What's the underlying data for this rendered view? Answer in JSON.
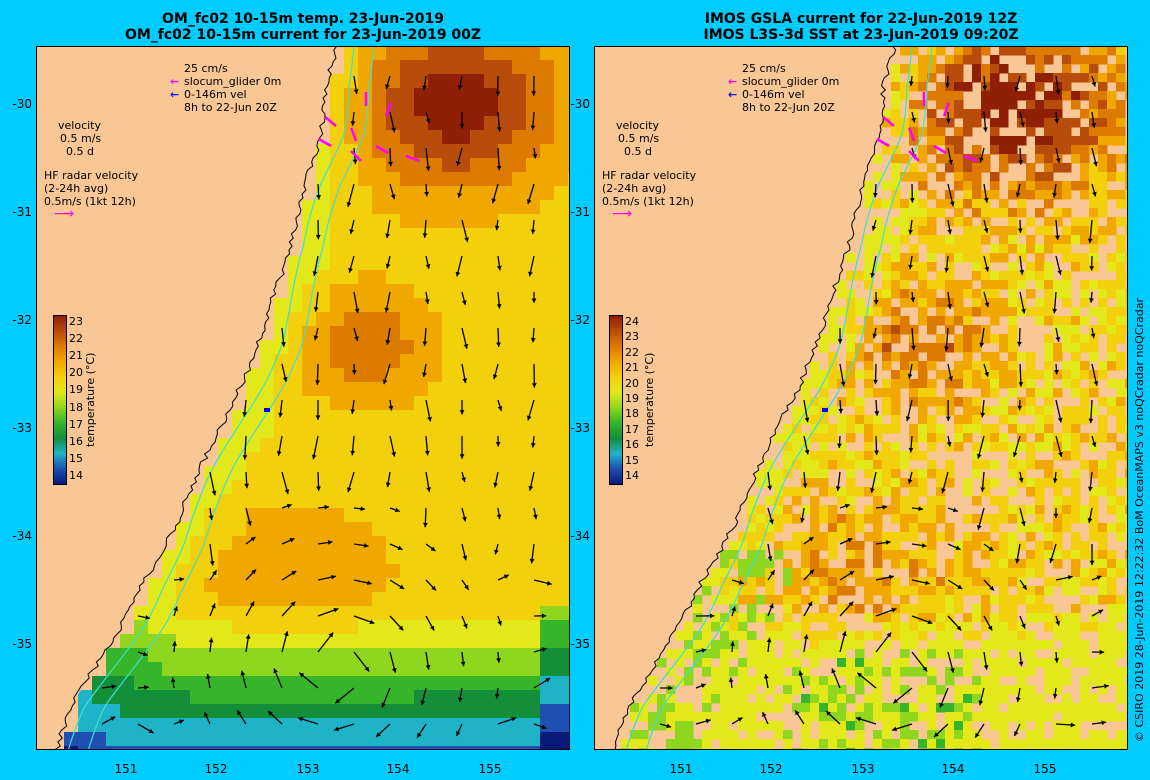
{
  "colors": {
    "background": "#00ccff",
    "land": "#f9c695",
    "contour": "#40e0d0",
    "arrow": "#000000",
    "glider": "#ff00ff",
    "vel": "#0000ff",
    "cbar": [
      "#0a1a7a",
      "#1e4fb3",
      "#1fb3c8",
      "#138f3a",
      "#36b42a",
      "#8fd61e",
      "#e2e81a",
      "#f3d00c",
      "#f0a800",
      "#dd7a00",
      "#b84c0a",
      "#8f1f05"
    ]
  },
  "left_panel": {
    "title_line1": "OM_fc02 10-15m temp. 23-Jun-2019",
    "title_line2": "OM_fc02 10-15m current for 23-Jun-2019 00Z",
    "legend": {
      "scale_label": "25 cm/s",
      "glider_label": "slocum_glider 0m",
      "vel_label": "0-146m vel",
      "time_label": "8h to 22-Jun 20Z",
      "velocity_label": "velocity",
      "ms_label": "0.5 m/s",
      "d_label": "0.5 d",
      "hf_label1": "HF radar velocity",
      "hf_label2": "(2-24h avg)",
      "hf_label3": "0.5m/s (1kt 12h)"
    },
    "colorbar": {
      "title": "temperature (°C)",
      "ticks": [
        "23",
        "22",
        "21",
        "20",
        "19",
        "18",
        "17",
        "16",
        "15",
        "14"
      ]
    }
  },
  "right_panel": {
    "title_line1": "IMOS GSLA current for 22-Jun-2019 12Z",
    "title_line2": "IMOS L3S-3d SST at 23-Jun-2019 09:20Z",
    "legend": {
      "scale_label": "25 cm/s",
      "glider_label": "slocum_glider 0m",
      "vel_label": "0-146m vel",
      "time_label": "8h to 22-Jun 20Z",
      "velocity_label": "velocity",
      "ms_label": "0.5 m/s",
      "d_label": "0.5 d",
      "hf_label1": "HF radar velocity",
      "hf_label2": "(2-24h avg)",
      "hf_label3": "0.5m/s (1kt 12h)"
    },
    "colorbar": {
      "title": "temperature (°C)",
      "ticks": [
        "24",
        "23",
        "22",
        "21",
        "20",
        "19",
        "18",
        "17",
        "16",
        "15",
        "14"
      ]
    }
  },
  "axes": {
    "y_ticks": [
      "-30",
      "-31",
      "-32",
      "-33",
      "-34",
      "-35"
    ],
    "x_ticks": [
      "151",
      "152",
      "153",
      "154",
      "155"
    ]
  },
  "credit": "© CSIRO 2019   28-Jun-2019 12:22:32 BoM OceanMAPS v3 noQCradar noQCradar"
}
